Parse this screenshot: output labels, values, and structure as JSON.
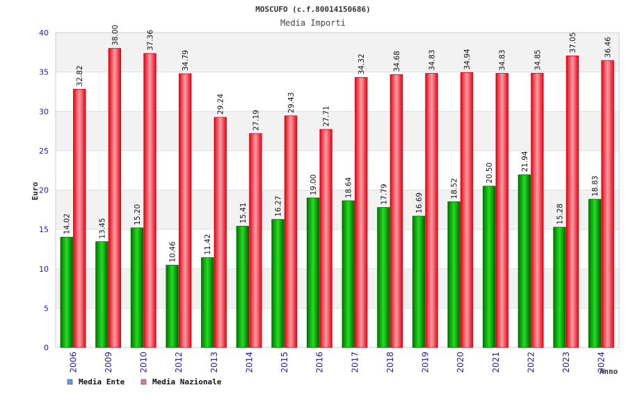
{
  "chart_data": {
    "type": "bar",
    "title": "MOSCUFO (c.f.80014150686)",
    "subtitle": "Media Importi",
    "xlabel": "Anno",
    "ylabel": "Euro",
    "ylim": [
      0,
      40
    ],
    "yticks": [
      "0",
      "5",
      "10",
      "15",
      "20",
      "25",
      "30",
      "35",
      "40"
    ],
    "categories": [
      "2006",
      "2009",
      "2010",
      "2012",
      "2013",
      "2014",
      "2015",
      "2016",
      "2017",
      "2018",
      "2019",
      "2020",
      "2021",
      "2022",
      "2023",
      "2024"
    ],
    "series": [
      {
        "name": "Media Ente",
        "color": "#00b000",
        "legend_color": "#6699ee",
        "values": [
          14.02,
          13.45,
          15.2,
          10.46,
          11.42,
          15.41,
          16.27,
          19.0,
          18.64,
          17.79,
          16.69,
          18.52,
          20.5,
          21.94,
          15.28,
          18.83
        ],
        "labels": [
          "14.02",
          "13.45",
          "15.20",
          "10.46",
          "11.42",
          "15.41",
          "16.27",
          "19.00",
          "18.64",
          "17.79",
          "16.69",
          "18.52",
          "20.50",
          "21.94",
          "15.28",
          "18.83"
        ]
      },
      {
        "name": "Media Nazionale",
        "color": "#ee0011",
        "legend_color": "#dd77aa",
        "values": [
          32.82,
          38.0,
          37.36,
          34.79,
          29.24,
          27.19,
          29.43,
          27.71,
          34.32,
          34.68,
          34.83,
          34.94,
          34.83,
          34.85,
          37.05,
          36.46
        ],
        "labels": [
          "32.82",
          "38.00",
          "37.36",
          "34.79",
          "29.24",
          "27.19",
          "29.43",
          "27.71",
          "34.32",
          "34.68",
          "34.83",
          "34.94",
          "34.83",
          "34.85",
          "37.05",
          "36.46"
        ]
      }
    ],
    "grid": true,
    "legend": "bottom-left"
  }
}
